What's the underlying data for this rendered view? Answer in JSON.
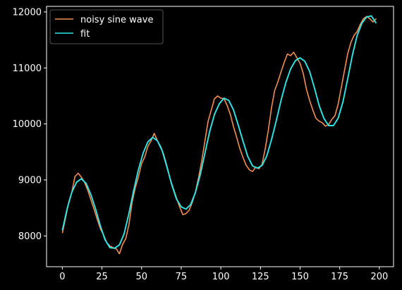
{
  "chart_data": {
    "type": "line",
    "title": "",
    "xlabel": "",
    "ylabel": "",
    "xlim": [
      -9.95,
      208.95
    ],
    "ylim": [
      7450,
      12100
    ],
    "xticks": [
      0,
      25,
      50,
      75,
      100,
      125,
      150,
      175,
      200
    ],
    "yticks": [
      8000,
      9000,
      10000,
      11000,
      12000
    ],
    "grid": false,
    "legend_position": "top-left",
    "background": "#000000",
    "series": [
      {
        "name": "noisy sine wave",
        "color": "#f28e52",
        "x": [
          0,
          2,
          4,
          6,
          8,
          10,
          12,
          14,
          16,
          18,
          20,
          22,
          24,
          26,
          28,
          30,
          32,
          34,
          36,
          38,
          40,
          42,
          44,
          46,
          48,
          50,
          52,
          54,
          56,
          58,
          60,
          62,
          64,
          66,
          68,
          70,
          72,
          74,
          76,
          78,
          80,
          82,
          84,
          86,
          88,
          90,
          92,
          94,
          96,
          98,
          100,
          102,
          104,
          106,
          108,
          110,
          112,
          114,
          116,
          118,
          120,
          122,
          124,
          126,
          128,
          130,
          132,
          134,
          136,
          138,
          140,
          142,
          144,
          146,
          148,
          150,
          152,
          154,
          156,
          158,
          160,
          162,
          164,
          166,
          168,
          170,
          172,
          174,
          176,
          178,
          180,
          182,
          184,
          186,
          188,
          190,
          192,
          194,
          196,
          198
        ],
        "y": [
          8050,
          8320,
          8600,
          8780,
          9060,
          9120,
          9050,
          8960,
          8820,
          8650,
          8480,
          8300,
          8130,
          8020,
          7880,
          7820,
          7790,
          7770,
          7680,
          7850,
          7950,
          8200,
          8600,
          8860,
          9050,
          9290,
          9410,
          9600,
          9700,
          9830,
          9700,
          9600,
          9450,
          9250,
          9020,
          8850,
          8680,
          8520,
          8380,
          8400,
          8460,
          8600,
          8790,
          9050,
          9350,
          9700,
          10050,
          10250,
          10450,
          10500,
          10460,
          10450,
          10330,
          10170,
          9950,
          9760,
          9560,
          9400,
          9260,
          9180,
          9150,
          9230,
          9200,
          9280,
          9560,
          9900,
          10290,
          10600,
          10750,
          10930,
          11100,
          11250,
          11220,
          11280,
          11180,
          11080,
          10900,
          10620,
          10420,
          10250,
          10100,
          10050,
          10020,
          9960,
          9990,
          10080,
          10150,
          10350,
          10650,
          10950,
          11250,
          11450,
          11580,
          11650,
          11780,
          11880,
          11920,
          11880,
          11820,
          11880
        ]
      },
      {
        "name": "fit",
        "color": "#2ee6e6",
        "x": [
          0,
          3,
          6,
          9,
          12,
          15,
          18,
          21,
          24,
          27,
          30,
          33,
          36,
          39,
          42,
          45,
          48,
          51,
          54,
          57,
          60,
          63,
          66,
          69,
          72,
          75,
          78,
          81,
          84,
          87,
          90,
          93,
          96,
          99,
          102,
          105,
          108,
          111,
          114,
          117,
          120,
          123,
          126,
          129,
          132,
          135,
          138,
          141,
          144,
          147,
          150,
          153,
          156,
          159,
          162,
          165,
          168,
          171,
          174,
          177,
          180,
          183,
          186,
          189,
          192,
          195,
          198
        ],
        "y": [
          8100,
          8480,
          8780,
          8960,
          9020,
          8940,
          8740,
          8480,
          8180,
          7930,
          7790,
          7780,
          7840,
          8040,
          8400,
          8810,
          9180,
          9480,
          9680,
          9760,
          9700,
          9520,
          9230,
          8920,
          8660,
          8520,
          8480,
          8560,
          8780,
          9090,
          9480,
          9870,
          10170,
          10360,
          10460,
          10420,
          10250,
          9980,
          9690,
          9420,
          9250,
          9210,
          9260,
          9430,
          9720,
          10060,
          10420,
          10740,
          10980,
          11130,
          11180,
          11120,
          10940,
          10650,
          10330,
          10100,
          9970,
          9970,
          10100,
          10390,
          10800,
          11230,
          11580,
          11800,
          11910,
          11930,
          11800
        ]
      }
    ]
  }
}
